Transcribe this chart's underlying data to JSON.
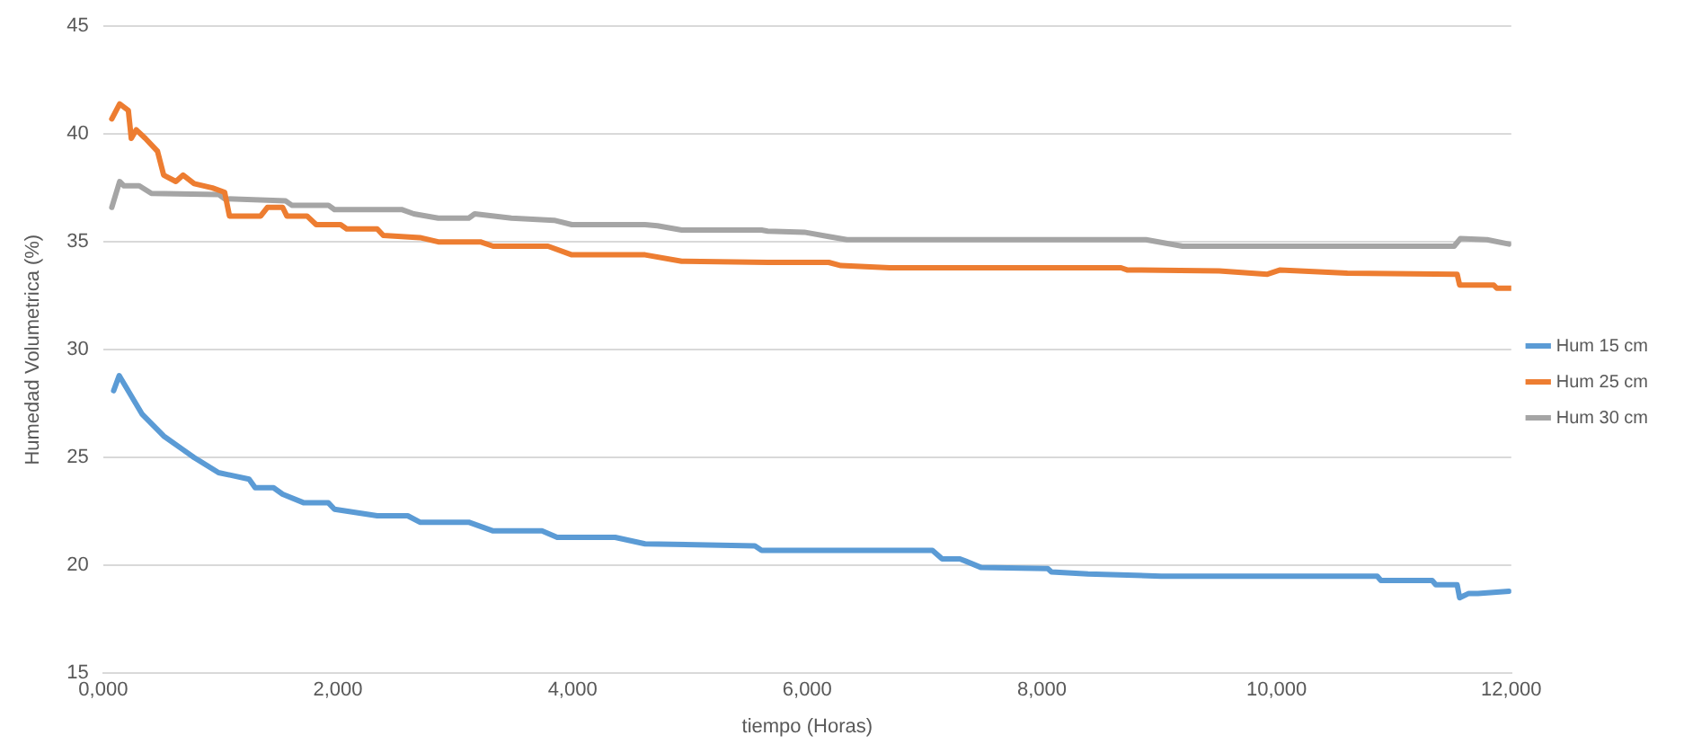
{
  "chart_data": {
    "type": "line",
    "xlabel": "tiempo (Horas)",
    "ylabel": "Humedad Volumetrica (%)",
    "xlim": [
      0,
      12000
    ],
    "xticks": [
      {
        "value": 0,
        "label": "0,000"
      },
      {
        "value": 2000,
        "label": "2,000"
      },
      {
        "value": 4000,
        "label": "4,000"
      },
      {
        "value": 6000,
        "label": "6,000"
      },
      {
        "value": 8000,
        "label": "8,000"
      },
      {
        "value": 10000,
        "label": "10,000"
      },
      {
        "value": 12000,
        "label": "12,000"
      }
    ],
    "ylim": [
      15,
      45
    ],
    "yticks": [
      15,
      20,
      25,
      30,
      35,
      40,
      45
    ],
    "grid": "y",
    "legend": "right",
    "marker": "none",
    "line_style": "solid",
    "series": [
      {
        "name": "Hum 15 cm",
        "color": "#5b9bd5",
        "x": [
          89,
          136,
          333,
          515,
          671,
          775,
          983,
          1243,
          1295,
          1451,
          1529,
          1711,
          1919,
          1971,
          2335,
          2595,
          2699,
          3115,
          3323,
          3739,
          3869,
          4363,
          4618,
          5554,
          5611,
          5975,
          7067,
          7150,
          7301,
          7348,
          7483,
          8050,
          8081,
          8393,
          9017,
          10858,
          10889,
          11326,
          11357,
          11539,
          11560,
          11638,
          11716,
          11981
        ],
        "values": [
          28.1,
          28.8,
          27.0,
          26.0,
          25.4,
          25.0,
          24.3,
          24.0,
          23.6,
          23.6,
          23.3,
          22.9,
          22.9,
          22.6,
          22.3,
          22.3,
          22.0,
          22.0,
          21.6,
          21.6,
          21.3,
          21.3,
          21.0,
          20.9,
          20.7,
          20.7,
          20.7,
          20.3,
          20.3,
          20.2,
          19.9,
          19.85,
          19.7,
          19.6,
          19.5,
          19.5,
          19.3,
          19.3,
          19.1,
          19.1,
          18.5,
          18.7,
          18.7,
          18.8
        ]
      },
      {
        "name": "Hum 25 cm",
        "color": "#ed7d31",
        "x": [
          73,
          140,
          214,
          239,
          281,
          359,
          463,
          515,
          619,
          681,
          775,
          931,
          1035,
          1076,
          1342,
          1399,
          1529,
          1565,
          1737,
          1815,
          2023,
          2075,
          2335,
          2387,
          2699,
          2855,
          3214,
          3323,
          3791,
          3994,
          4618,
          4930,
          5663,
          6183,
          6287,
          6703,
          8674,
          8726,
          9511,
          9922,
          10031,
          10603,
          11539,
          11560,
          11851,
          11877,
          12000
        ],
        "values": [
          40.7,
          41.4,
          41.1,
          39.8,
          40.2,
          39.8,
          39.2,
          38.1,
          37.8,
          38.1,
          37.7,
          37.5,
          37.3,
          36.2,
          36.2,
          36.6,
          36.6,
          36.2,
          36.2,
          35.8,
          35.8,
          35.6,
          35.6,
          35.3,
          35.2,
          35.0,
          35.0,
          34.8,
          34.8,
          34.4,
          34.4,
          34.1,
          34.05,
          34.05,
          33.9,
          33.8,
          33.8,
          33.7,
          33.65,
          33.5,
          33.7,
          33.55,
          33.5,
          33.0,
          33.0,
          32.85,
          32.85
        ]
      },
      {
        "name": "Hum 30 cm",
        "color": "#a5a5a5",
        "x": [
          73,
          140,
          177,
          307,
          411,
          983,
          1035,
          1555,
          1607,
          1919,
          1971,
          2543,
          2647,
          2855,
          3115,
          3166,
          3479,
          3843,
          3994,
          4618,
          4723,
          4930,
          5611,
          5663,
          5975,
          6183,
          6339,
          8887,
          9199,
          11513,
          11566,
          11794,
          11981
        ],
        "values": [
          36.6,
          37.8,
          37.6,
          37.6,
          37.25,
          37.2,
          37.0,
          36.9,
          36.7,
          36.7,
          36.5,
          36.5,
          36.3,
          36.1,
          36.1,
          36.3,
          36.1,
          36.0,
          35.8,
          35.8,
          35.75,
          35.55,
          35.55,
          35.5,
          35.45,
          35.25,
          35.1,
          35.1,
          34.8,
          34.8,
          35.15,
          35.1,
          34.9
        ]
      }
    ]
  }
}
